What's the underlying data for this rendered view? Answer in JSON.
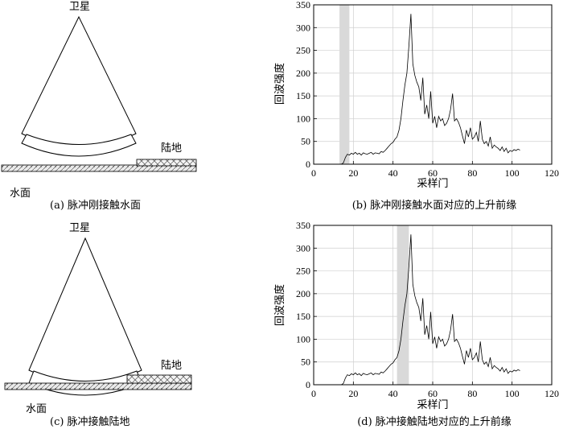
{
  "diagrams": [
    {
      "satellite_label": "卫星",
      "water_label": "水面",
      "land_label": "陆地",
      "caption": "(a) 脉冲刚接触水面"
    },
    {
      "satellite_label": "卫星",
      "water_label": "水面",
      "land_label": "陆地",
      "caption": "(c) 脉冲接触陆地"
    }
  ],
  "chart_data": [
    {
      "type": "line",
      "caption": "(b) 脉冲刚接触水面对应的上升前缘",
      "xlabel": "采样门",
      "ylabel": "回波强度",
      "xlim": [
        0,
        120
      ],
      "ylim": [
        0,
        350
      ],
      "xticks": [
        0,
        20,
        40,
        60,
        80,
        100,
        120
      ],
      "yticks": [
        0,
        50,
        100,
        150,
        200,
        250,
        300,
        350
      ],
      "grid": true,
      "highlight_band": [
        13,
        18
      ],
      "x": [
        1,
        2,
        3,
        4,
        5,
        6,
        7,
        8,
        9,
        10,
        11,
        12,
        13,
        14,
        15,
        16,
        17,
        18,
        19,
        20,
        21,
        22,
        23,
        24,
        25,
        26,
        27,
        28,
        29,
        30,
        31,
        32,
        33,
        34,
        35,
        36,
        37,
        38,
        39,
        40,
        41,
        42,
        43,
        44,
        45,
        46,
        47,
        48,
        49,
        50,
        51,
        52,
        53,
        54,
        55,
        56,
        57,
        58,
        59,
        60,
        61,
        62,
        63,
        64,
        65,
        66,
        67,
        68,
        69,
        70,
        71,
        72,
        73,
        74,
        75,
        76,
        77,
        78,
        79,
        80,
        81,
        82,
        83,
        84,
        85,
        86,
        87,
        88,
        89,
        90,
        91,
        92,
        93,
        94,
        95,
        96,
        97,
        98,
        99,
        100,
        101,
        102,
        103,
        104
      ],
      "values": [
        0,
        0,
        0,
        0,
        0,
        0,
        0,
        0,
        0,
        0,
        0,
        0,
        0,
        0,
        3,
        15,
        22,
        20,
        24,
        22,
        26,
        22,
        24,
        20,
        25,
        23,
        22,
        24,
        26,
        22,
        25,
        24,
        23,
        28,
        26,
        30,
        35,
        40,
        45,
        48,
        55,
        60,
        75,
        100,
        140,
        175,
        200,
        260,
        330,
        220,
        195,
        180,
        170,
        140,
        190,
        110,
        130,
        100,
        160,
        90,
        105,
        80,
        105,
        95,
        100,
        85,
        90,
        100,
        120,
        155,
        95,
        100,
        92,
        80,
        62,
        45,
        75,
        60,
        80,
        55,
        60,
        70,
        50,
        95,
        55,
        45,
        50,
        40,
        60,
        35,
        42,
        38,
        35,
        30,
        38,
        28,
        35,
        25,
        30,
        28,
        32,
        30,
        33,
        31
      ]
    },
    {
      "type": "line",
      "caption": "(d) 脉冲接触陆地对应的上升前缘",
      "xlabel": "采样门",
      "ylabel": "回波强度",
      "xlim": [
        0,
        120
      ],
      "ylim": [
        0,
        350
      ],
      "xticks": [
        0,
        20,
        40,
        60,
        80,
        100,
        120
      ],
      "yticks": [
        0,
        50,
        100,
        150,
        200,
        250,
        300,
        350
      ],
      "grid": true,
      "highlight_band": [
        42,
        48
      ],
      "x": [
        1,
        2,
        3,
        4,
        5,
        6,
        7,
        8,
        9,
        10,
        11,
        12,
        13,
        14,
        15,
        16,
        17,
        18,
        19,
        20,
        21,
        22,
        23,
        24,
        25,
        26,
        27,
        28,
        29,
        30,
        31,
        32,
        33,
        34,
        35,
        36,
        37,
        38,
        39,
        40,
        41,
        42,
        43,
        44,
        45,
        46,
        47,
        48,
        49,
        50,
        51,
        52,
        53,
        54,
        55,
        56,
        57,
        58,
        59,
        60,
        61,
        62,
        63,
        64,
        65,
        66,
        67,
        68,
        69,
        70,
        71,
        72,
        73,
        74,
        75,
        76,
        77,
        78,
        79,
        80,
        81,
        82,
        83,
        84,
        85,
        86,
        87,
        88,
        89,
        90,
        91,
        92,
        93,
        94,
        95,
        96,
        97,
        98,
        99,
        100,
        101,
        102,
        103,
        104
      ],
      "values": [
        0,
        0,
        0,
        0,
        0,
        0,
        0,
        0,
        0,
        0,
        0,
        0,
        0,
        0,
        3,
        15,
        22,
        20,
        24,
        22,
        26,
        22,
        24,
        20,
        25,
        23,
        22,
        24,
        26,
        22,
        25,
        24,
        23,
        28,
        26,
        30,
        35,
        40,
        45,
        48,
        55,
        60,
        75,
        100,
        140,
        175,
        200,
        260,
        330,
        220,
        195,
        180,
        170,
        140,
        190,
        110,
        130,
        100,
        160,
        90,
        105,
        80,
        105,
        95,
        100,
        85,
        90,
        100,
        120,
        155,
        95,
        100,
        92,
        80,
        62,
        45,
        75,
        60,
        80,
        55,
        60,
        70,
        50,
        95,
        55,
        45,
        50,
        40,
        60,
        35,
        42,
        38,
        35,
        30,
        38,
        28,
        35,
        25,
        30,
        28,
        32,
        30,
        33,
        31
      ]
    }
  ]
}
